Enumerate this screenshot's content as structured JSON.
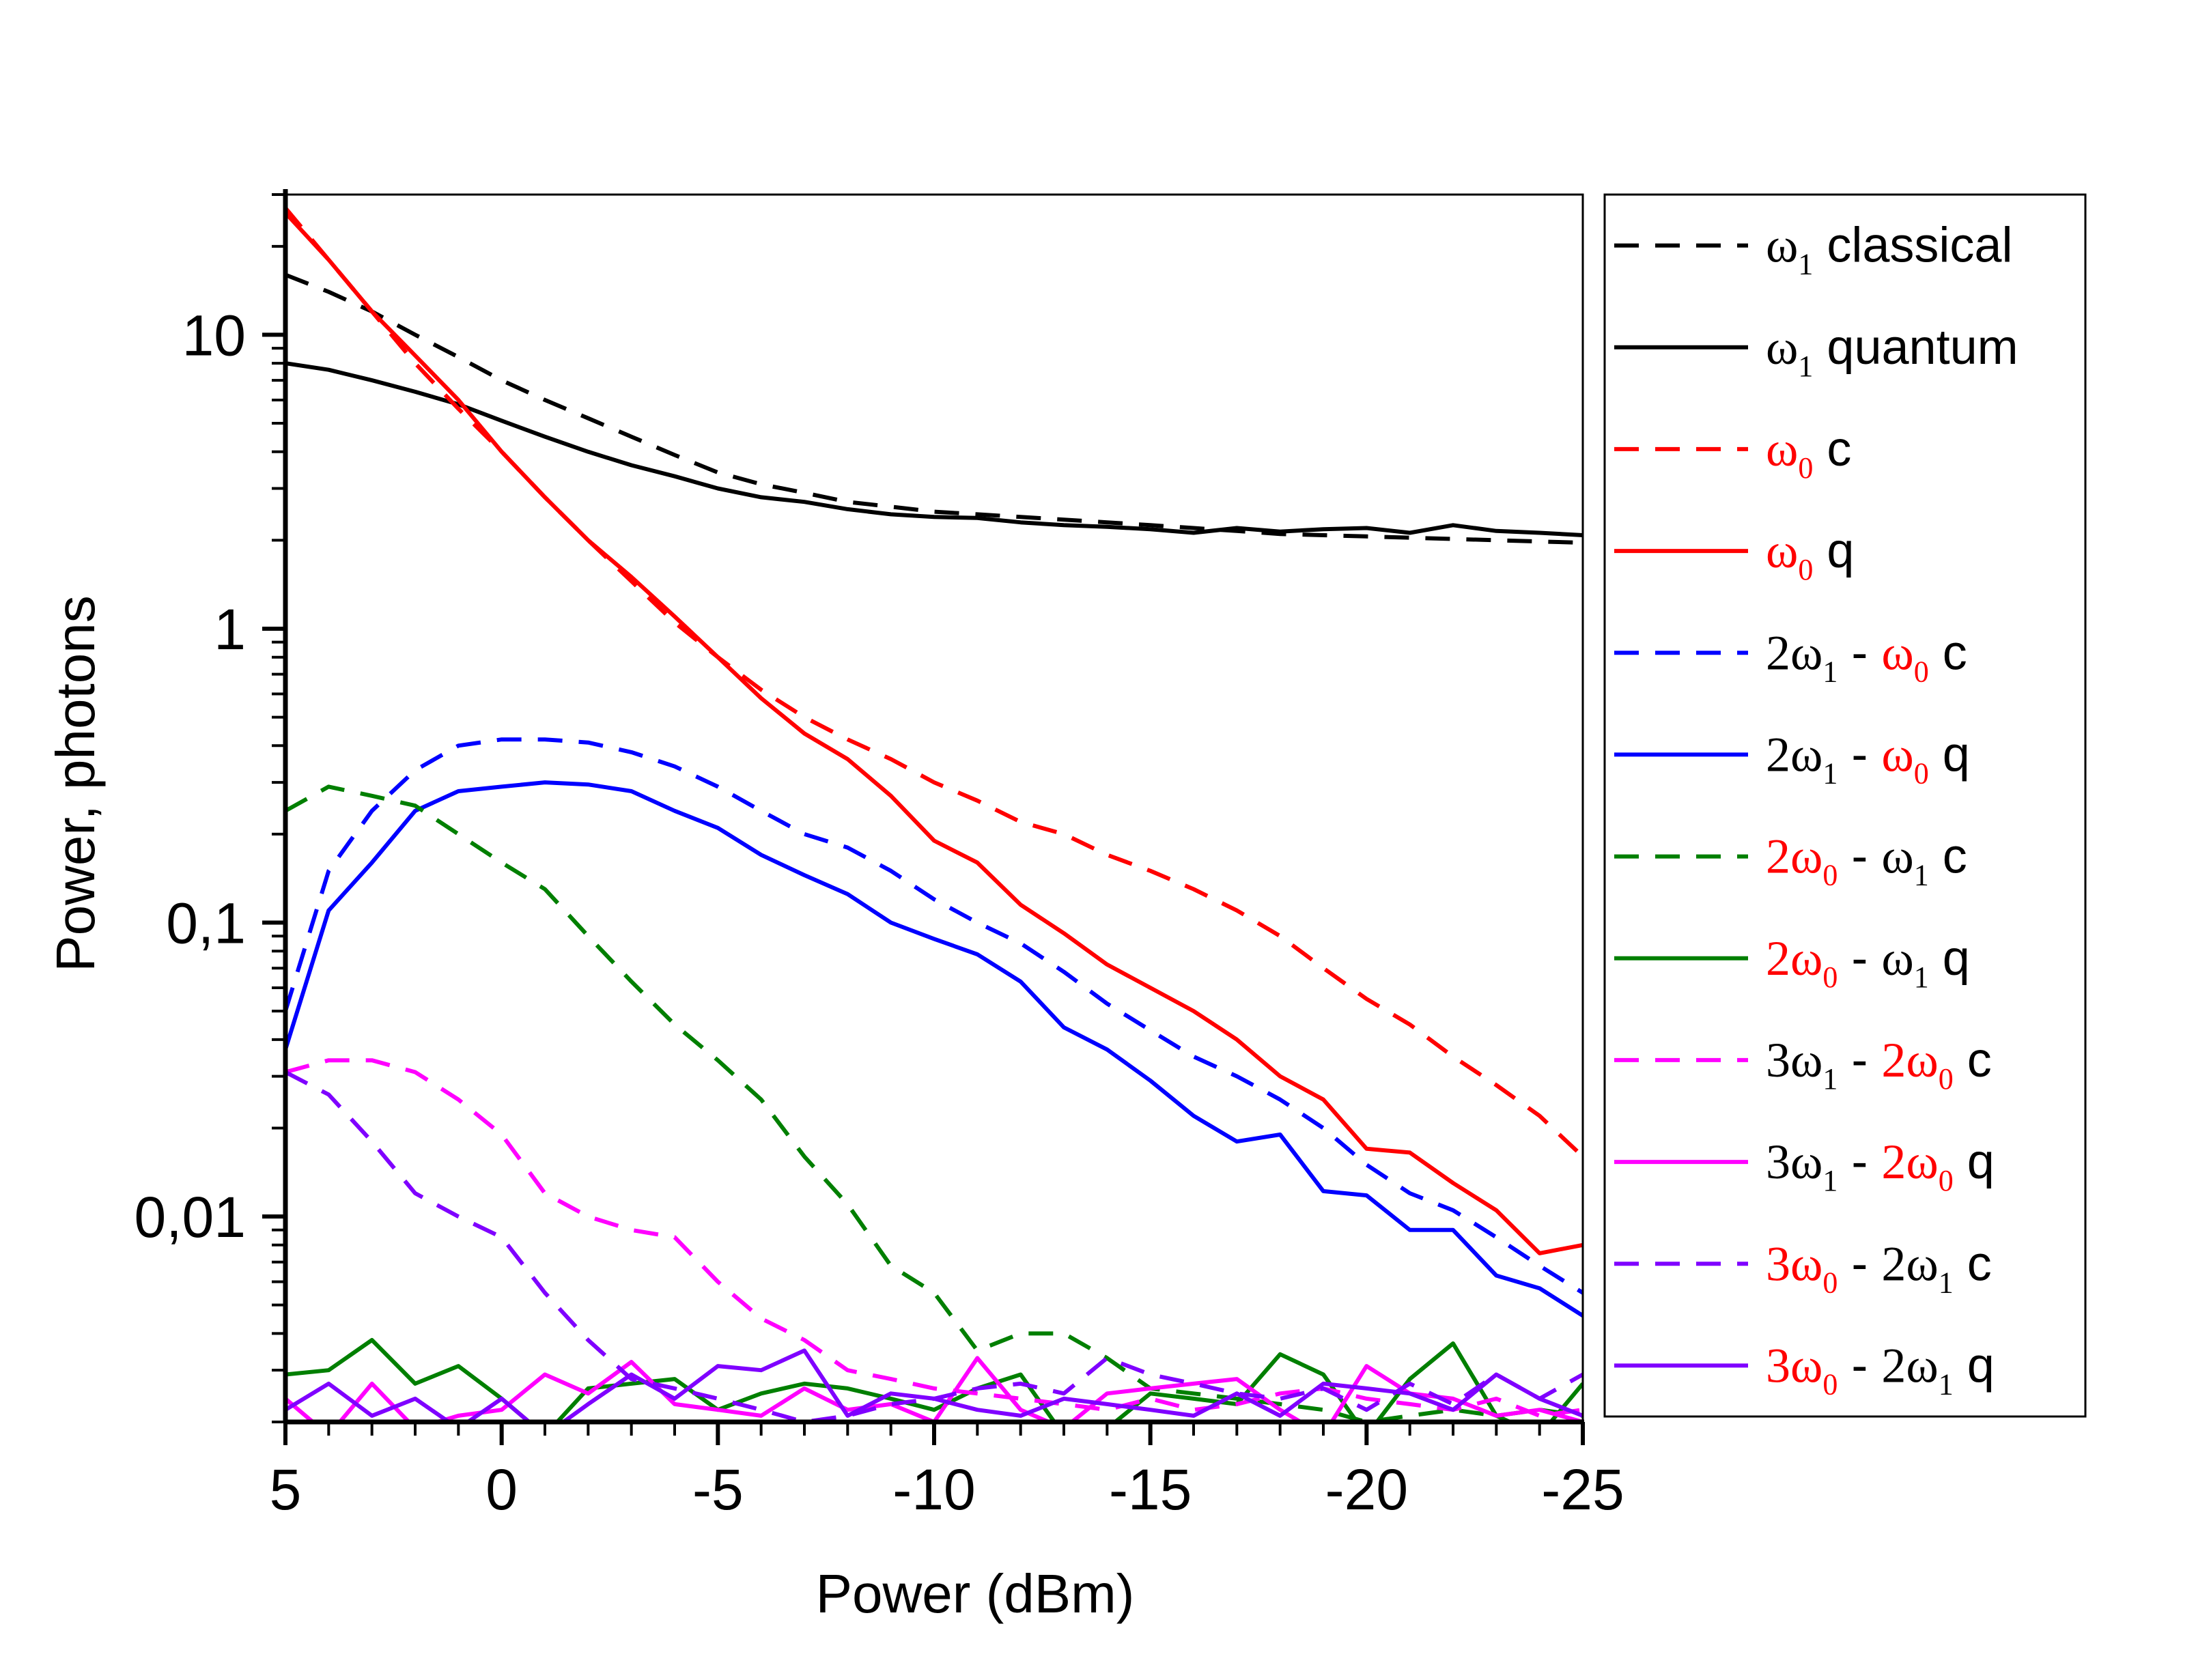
{
  "chart_data": {
    "type": "line",
    "xlabel": "Power (dBm)",
    "ylabel": "Power, photons",
    "x_reversed": true,
    "y_scale": "log",
    "xlim": [
      5,
      -25
    ],
    "ylim": [
      0.002,
      30
    ],
    "xticks": [
      5,
      0,
      -5,
      -10,
      -15,
      -20,
      -25
    ],
    "xtick_labels": [
      "5",
      "0",
      "-5",
      "-10",
      "-15",
      "-20",
      "-25"
    ],
    "yticks": [
      10,
      1,
      0.1,
      0.01
    ],
    "ytick_labels": [
      "10",
      "1",
      "0,1",
      "0,01"
    ],
    "grid": false,
    "legend_position": "right-outside",
    "x": [
      5,
      4,
      3,
      2,
      1,
      0,
      -1,
      -2,
      -3,
      -4,
      -5,
      -6,
      -7,
      -8,
      -9,
      -10,
      -11,
      -12,
      -13,
      -14,
      -15,
      -16,
      -17,
      -18,
      -19,
      -20,
      -21,
      -22,
      -23,
      -24,
      -25
    ],
    "series": [
      {
        "name": "ω1 classical",
        "color": "#000000",
        "dash": true,
        "values": [
          16,
          14,
          12,
          10,
          8.4,
          7.0,
          6.0,
          5.2,
          4.5,
          3.9,
          3.4,
          3.1,
          2.9,
          2.7,
          2.6,
          2.5,
          2.45,
          2.4,
          2.35,
          2.3,
          2.25,
          2.2,
          2.15,
          2.1,
          2.08,
          2.06,
          2.04,
          2.02,
          2.0,
          1.98,
          1.96
        ]
      },
      {
        "name": "ω1 quantum",
        "color": "#000000",
        "dash": false,
        "values": [
          8.0,
          7.6,
          7.0,
          6.4,
          5.8,
          5.1,
          4.5,
          4.0,
          3.6,
          3.3,
          3.0,
          2.8,
          2.7,
          2.55,
          2.45,
          2.4,
          2.38,
          2.3,
          2.25,
          2.22,
          2.18,
          2.12,
          2.2,
          2.14,
          2.18,
          2.2,
          2.12,
          2.25,
          2.15,
          2.12,
          2.08
        ]
      },
      {
        "name": "ω0 c",
        "color": "#ff0000",
        "dash": true,
        "values": [
          27,
          18,
          12,
          8.0,
          5.6,
          4.0,
          2.8,
          2.0,
          1.45,
          1.05,
          0.8,
          0.62,
          0.5,
          0.42,
          0.36,
          0.3,
          0.26,
          0.22,
          0.2,
          0.17,
          0.15,
          0.13,
          0.11,
          0.09,
          0.07,
          0.055,
          0.045,
          0.035,
          0.028,
          0.022,
          0.016
        ]
      },
      {
        "name": "ω0 q",
        "color": "#ff0000",
        "dash": false,
        "values": [
          26,
          18,
          12,
          8.5,
          6.0,
          4.0,
          2.8,
          2.0,
          1.5,
          1.1,
          0.8,
          0.58,
          0.44,
          0.36,
          0.27,
          0.19,
          0.16,
          0.115,
          0.092,
          0.072,
          0.06,
          0.05,
          0.04,
          0.03,
          0.025,
          0.017,
          0.0165,
          0.013,
          0.0105,
          0.0075,
          0.008
        ]
      },
      {
        "name": "2ω1 - ω0 c",
        "color": "#0000ff",
        "dash": true,
        "values": [
          0.05,
          0.15,
          0.24,
          0.33,
          0.4,
          0.42,
          0.42,
          0.41,
          0.38,
          0.34,
          0.29,
          0.24,
          0.2,
          0.18,
          0.15,
          0.12,
          0.1,
          0.085,
          0.068,
          0.053,
          0.043,
          0.035,
          0.03,
          0.025,
          0.02,
          0.015,
          0.012,
          0.0105,
          0.0085,
          0.0068,
          0.0055
        ]
      },
      {
        "name": "2ω1 - ω0 q",
        "color": "#0000ff",
        "dash": false,
        "values": [
          0.037,
          0.11,
          0.16,
          0.24,
          0.28,
          0.29,
          0.3,
          0.295,
          0.28,
          0.24,
          0.21,
          0.17,
          0.145,
          0.125,
          0.1,
          0.088,
          0.078,
          0.063,
          0.044,
          0.037,
          0.029,
          0.022,
          0.018,
          0.019,
          0.0122,
          0.0118,
          0.009,
          0.009,
          0.0063,
          0.0057,
          0.0046
        ]
      },
      {
        "name": "2ω0 - ω1 c",
        "color": "#007f00",
        "dash": true,
        "values": [
          0.24,
          0.29,
          0.27,
          0.25,
          0.2,
          0.16,
          0.13,
          0.09,
          0.063,
          0.045,
          0.034,
          0.025,
          0.016,
          0.011,
          0.0068,
          0.0055,
          0.0035,
          0.004,
          0.004,
          0.0033,
          0.0026,
          0.0025,
          0.0024,
          0.0023,
          0.0022,
          0.002,
          0.0021,
          0.0022,
          0.0021,
          0.0022,
          0.0021
        ]
      },
      {
        "name": "2ω0 - ω1 q",
        "color": "#007f00",
        "dash": false,
        "values": [
          0.0029,
          0.003,
          0.0038,
          0.0027,
          0.0031,
          0.0024,
          0.0018,
          0.0026,
          0.0027,
          0.0028,
          0.0022,
          0.0025,
          0.0027,
          0.0026,
          0.0024,
          0.0022,
          0.0026,
          0.0029,
          0.0018,
          0.0019,
          0.0025,
          0.0024,
          0.0023,
          0.0034,
          0.0029,
          0.0018,
          0.0028,
          0.0037,
          0.0021,
          0.0018,
          0.0027
        ]
      },
      {
        "name": "3ω1 - 2ω0 c",
        "color": "#ff00ff",
        "dash": true,
        "values": [
          0.031,
          0.034,
          0.034,
          0.031,
          0.025,
          0.019,
          0.012,
          0.01,
          0.009,
          0.0085,
          0.006,
          0.0045,
          0.0038,
          0.003,
          0.0028,
          0.0026,
          0.0025,
          0.0024,
          0.0023,
          0.0022,
          0.0024,
          0.0022,
          0.0023,
          0.0025,
          0.0026,
          0.0024,
          0.0023,
          0.0022,
          0.0024,
          0.0021,
          0.0022
        ]
      },
      {
        "name": "3ω1 - 2ω0 q",
        "color": "#ff00ff",
        "dash": false,
        "values": [
          0.0024,
          0.0018,
          0.0027,
          0.0019,
          0.0021,
          0.0022,
          0.0029,
          0.0025,
          0.0032,
          0.0023,
          0.0022,
          0.0021,
          0.0026,
          0.0022,
          0.0023,
          0.002,
          0.0033,
          0.0022,
          0.0019,
          0.0025,
          0.0026,
          0.0027,
          0.0028,
          0.0022,
          0.0018,
          0.0031,
          0.0025,
          0.0024,
          0.0021,
          0.0022,
          0.002
        ]
      },
      {
        "name": "3ω0 - 2ω1 c",
        "color": "#7f00ff",
        "dash": true,
        "values": [
          0.031,
          0.026,
          0.018,
          0.012,
          0.01,
          0.0085,
          0.0055,
          0.0038,
          0.0028,
          0.0026,
          0.0024,
          0.0022,
          0.002,
          0.0021,
          0.0023,
          0.0024,
          0.0026,
          0.0027,
          0.0025,
          0.0033,
          0.0029,
          0.0027,
          0.0025,
          0.0024,
          0.0026,
          0.0022,
          0.0027,
          0.0023,
          0.0029,
          0.0024,
          0.0029
        ]
      },
      {
        "name": "3ω0 - 2ω1 q",
        "color": "#7f00ff",
        "dash": false,
        "values": [
          0.0022,
          0.0027,
          0.0021,
          0.0024,
          0.0019,
          0.0024,
          0.0018,
          0.0023,
          0.0029,
          0.0024,
          0.0031,
          0.003,
          0.0035,
          0.0021,
          0.0025,
          0.0024,
          0.0022,
          0.0021,
          0.0024,
          0.0023,
          0.0022,
          0.0021,
          0.0025,
          0.0021,
          0.0027,
          0.0026,
          0.0025,
          0.0022,
          0.0029,
          0.0024,
          0.0021
        ]
      }
    ],
    "legend": [
      {
        "line": "dash",
        "color": "#000000",
        "parts": [
          {
            "t": "ω",
            "c": "#000000",
            "k": "sym"
          },
          {
            "t": "1",
            "c": "#000000",
            "k": "sub"
          },
          {
            "t": " classical",
            "c": "#000000",
            "k": "txt"
          }
        ]
      },
      {
        "line": "solid",
        "color": "#000000",
        "parts": [
          {
            "t": "ω",
            "c": "#000000",
            "k": "sym"
          },
          {
            "t": "1",
            "c": "#000000",
            "k": "sub"
          },
          {
            "t": " quantum",
            "c": "#000000",
            "k": "txt"
          }
        ]
      },
      {
        "line": "dash",
        "color": "#ff0000",
        "parts": [
          {
            "t": "ω",
            "c": "#ff0000",
            "k": "sym"
          },
          {
            "t": "0",
            "c": "#ff0000",
            "k": "sub"
          },
          {
            "t": " c",
            "c": "#000000",
            "k": "txt"
          }
        ]
      },
      {
        "line": "solid",
        "color": "#ff0000",
        "parts": [
          {
            "t": "ω",
            "c": "#ff0000",
            "k": "sym"
          },
          {
            "t": "0",
            "c": "#ff0000",
            "k": "sub"
          },
          {
            "t": " q",
            "c": "#000000",
            "k": "txt"
          }
        ]
      },
      {
        "line": "dash",
        "color": "#0000ff",
        "parts": [
          {
            "t": "2ω",
            "c": "#000000",
            "k": "sym"
          },
          {
            "t": "1",
            "c": "#000000",
            "k": "sub"
          },
          {
            "t": " - ",
            "c": "#000000",
            "k": "txt"
          },
          {
            "t": "ω",
            "c": "#ff0000",
            "k": "sym"
          },
          {
            "t": "0",
            "c": "#ff0000",
            "k": "sub"
          },
          {
            "t": " c",
            "c": "#000000",
            "k": "txt"
          }
        ]
      },
      {
        "line": "solid",
        "color": "#0000ff",
        "parts": [
          {
            "t": "2ω",
            "c": "#000000",
            "k": "sym"
          },
          {
            "t": "1",
            "c": "#000000",
            "k": "sub"
          },
          {
            "t": " - ",
            "c": "#000000",
            "k": "txt"
          },
          {
            "t": "ω",
            "c": "#ff0000",
            "k": "sym"
          },
          {
            "t": "0",
            "c": "#ff0000",
            "k": "sub"
          },
          {
            "t": " q",
            "c": "#000000",
            "k": "txt"
          }
        ]
      },
      {
        "line": "dash",
        "color": "#007f00",
        "parts": [
          {
            "t": "2ω",
            "c": "#ff0000",
            "k": "sym"
          },
          {
            "t": "0",
            "c": "#ff0000",
            "k": "sub"
          },
          {
            "t": " - ",
            "c": "#000000",
            "k": "txt"
          },
          {
            "t": "ω",
            "c": "#000000",
            "k": "sym"
          },
          {
            "t": "1",
            "c": "#000000",
            "k": "sub"
          },
          {
            "t": " c",
            "c": "#000000",
            "k": "txt"
          }
        ]
      },
      {
        "line": "solid",
        "color": "#007f00",
        "parts": [
          {
            "t": "2ω",
            "c": "#ff0000",
            "k": "sym"
          },
          {
            "t": "0",
            "c": "#ff0000",
            "k": "sub"
          },
          {
            "t": " - ",
            "c": "#000000",
            "k": "txt"
          },
          {
            "t": "ω",
            "c": "#000000",
            "k": "sym"
          },
          {
            "t": "1",
            "c": "#000000",
            "k": "sub"
          },
          {
            "t": " q",
            "c": "#000000",
            "k": "txt"
          }
        ]
      },
      {
        "line": "dash",
        "color": "#ff00ff",
        "parts": [
          {
            "t": "3ω",
            "c": "#000000",
            "k": "sym"
          },
          {
            "t": "1",
            "c": "#000000",
            "k": "sub"
          },
          {
            "t": " - ",
            "c": "#000000",
            "k": "txt"
          },
          {
            "t": "2ω",
            "c": "#ff0000",
            "k": "sym"
          },
          {
            "t": "0",
            "c": "#ff0000",
            "k": "sub"
          },
          {
            "t": " c",
            "c": "#000000",
            "k": "txt"
          }
        ]
      },
      {
        "line": "solid",
        "color": "#ff00ff",
        "parts": [
          {
            "t": "3ω",
            "c": "#000000",
            "k": "sym"
          },
          {
            "t": "1",
            "c": "#000000",
            "k": "sub"
          },
          {
            "t": " - ",
            "c": "#000000",
            "k": "txt"
          },
          {
            "t": "2ω",
            "c": "#ff0000",
            "k": "sym"
          },
          {
            "t": "0",
            "c": "#ff0000",
            "k": "sub"
          },
          {
            "t": " q",
            "c": "#000000",
            "k": "txt"
          }
        ]
      },
      {
        "line": "dash",
        "color": "#7f00ff",
        "parts": [
          {
            "t": "3ω",
            "c": "#ff0000",
            "k": "sym"
          },
          {
            "t": "0",
            "c": "#ff0000",
            "k": "sub"
          },
          {
            "t": " - ",
            "c": "#000000",
            "k": "txt"
          },
          {
            "t": "2ω",
            "c": "#000000",
            "k": "sym"
          },
          {
            "t": "1",
            "c": "#000000",
            "k": "sub"
          },
          {
            "t": " c",
            "c": "#000000",
            "k": "txt"
          }
        ]
      },
      {
        "line": "solid",
        "color": "#7f00ff",
        "parts": [
          {
            "t": "3ω",
            "c": "#ff0000",
            "k": "sym"
          },
          {
            "t": "0",
            "c": "#ff0000",
            "k": "sub"
          },
          {
            "t": " - ",
            "c": "#000000",
            "k": "txt"
          },
          {
            "t": "2ω",
            "c": "#000000",
            "k": "sym"
          },
          {
            "t": "1",
            "c": "#000000",
            "k": "sub"
          },
          {
            "t": " q",
            "c": "#000000",
            "k": "txt"
          }
        ]
      }
    ]
  }
}
